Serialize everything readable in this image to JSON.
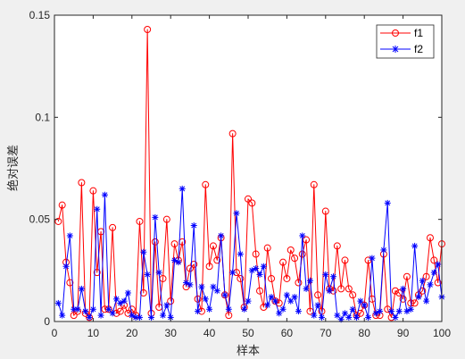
{
  "chart_data": {
    "type": "line",
    "title": "",
    "xlabel": "样本",
    "ylabel": "绝对误差",
    "xlim": [
      0,
      100
    ],
    "ylim": [
      0,
      0.15
    ],
    "xticks": [
      "0",
      "10",
      "20",
      "30",
      "40",
      "50",
      "60",
      "70",
      "80",
      "90",
      "100"
    ],
    "yticks": [
      "0",
      "0.05",
      "0.1",
      "0.15"
    ],
    "grid": false,
    "legend_position": "top-right",
    "x": [
      1,
      2,
      3,
      4,
      5,
      6,
      7,
      8,
      9,
      10,
      11,
      12,
      13,
      14,
      15,
      16,
      17,
      18,
      19,
      20,
      21,
      22,
      23,
      24,
      25,
      26,
      27,
      28,
      29,
      30,
      31,
      32,
      33,
      34,
      35,
      36,
      37,
      38,
      39,
      40,
      41,
      42,
      43,
      44,
      45,
      46,
      47,
      48,
      49,
      50,
      51,
      52,
      53,
      54,
      55,
      56,
      57,
      58,
      59,
      60,
      61,
      62,
      63,
      64,
      65,
      66,
      67,
      68,
      69,
      70,
      71,
      72,
      73,
      74,
      75,
      76,
      77,
      78,
      79,
      80,
      81,
      82,
      83,
      84,
      85,
      86,
      87,
      88,
      89,
      90,
      91,
      92,
      93,
      94,
      95,
      96,
      97,
      98,
      99,
      100
    ],
    "series": [
      {
        "name": "f1",
        "color": "#ff0000",
        "marker": "circle",
        "values": [
          0.049,
          0.057,
          0.029,
          0.019,
          0.003,
          0.005,
          0.068,
          0.004,
          0.002,
          0.064,
          0.024,
          0.044,
          0.006,
          0.006,
          0.046,
          0.004,
          0.005,
          0.008,
          0.004,
          0.006,
          0.003,
          0.049,
          0.014,
          0.143,
          0.004,
          0.039,
          0.007,
          0.021,
          0.05,
          0.01,
          0.038,
          0.03,
          0.039,
          0.017,
          0.026,
          0.028,
          0.011,
          0.005,
          0.067,
          0.027,
          0.037,
          0.03,
          0.041,
          0.013,
          0.003,
          0.092,
          0.024,
          0.021,
          0.007,
          0.06,
          0.058,
          0.033,
          0.015,
          0.007,
          0.036,
          0.021,
          0.01,
          0.009,
          0.029,
          0.021,
          0.035,
          0.031,
          0.019,
          0.033,
          0.04,
          0.005,
          0.067,
          0.013,
          0.005,
          0.054,
          0.016,
          0.015,
          0.037,
          0.016,
          0.03,
          0.016,
          0.013,
          0.003,
          0.004,
          0.008,
          0.03,
          0.011,
          0.003,
          0.003,
          0.033,
          0.006,
          0.002,
          0.015,
          0.014,
          0.011,
          0.022,
          0.009,
          0.009,
          0.013,
          0.015,
          0.022,
          0.041,
          0.03,
          0.019,
          0.038
        ]
      },
      {
        "name": "f2",
        "color": "#0000ff",
        "marker": "star",
        "values": [
          0.009,
          0.003,
          0.027,
          0.042,
          0.006,
          0.006,
          0.016,
          0.005,
          0.002,
          0.006,
          0.055,
          0.003,
          0.062,
          0.006,
          0.004,
          0.011,
          0.009,
          0.01,
          0.014,
          0.003,
          0.002,
          0.002,
          0.034,
          0.023,
          0.002,
          0.051,
          0.024,
          0.003,
          0.008,
          0.002,
          0.03,
          0.029,
          0.065,
          0.019,
          0.018,
          0.047,
          0.005,
          0.017,
          0.011,
          0.006,
          0.017,
          0.015,
          0.042,
          0.013,
          0.006,
          0.024,
          0.053,
          0.033,
          0.006,
          0.01,
          0.025,
          0.026,
          0.023,
          0.027,
          0.008,
          0.012,
          0.01,
          0.004,
          0.006,
          0.013,
          0.01,
          0.012,
          0.005,
          0.042,
          0.016,
          0.02,
          0.003,
          0.008,
          0.002,
          0.023,
          0.015,
          0.022,
          0.003,
          0.001,
          0.004,
          0.002,
          0.006,
          0.002,
          0.01,
          0.008,
          0.002,
          0.031,
          0.004,
          0.005,
          0.035,
          0.058,
          0.005,
          0.002,
          0.005,
          0.016,
          0.005,
          0.006,
          0.037,
          0.012,
          0.02,
          0.01,
          0.018,
          0.024,
          0.028,
          0.012
        ]
      }
    ]
  }
}
